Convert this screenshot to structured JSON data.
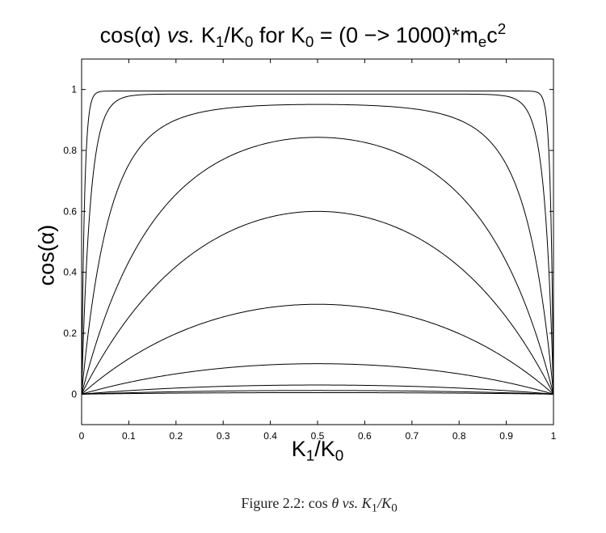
{
  "chart_data": {
    "type": "line",
    "title": {
      "part1": "cos(α) ",
      "vs": "vs.",
      "part2": " K",
      "sub1": "1",
      "part3": "/K",
      "sub2": "0",
      "part4": " for K",
      "sub3": "0",
      "part5": " = (0 −> 1000)*m",
      "sub4": "e",
      "part6": "c",
      "sup1": "2"
    },
    "xlabel": {
      "main": "K",
      "sub1": "1",
      "mid": "/K",
      "sub2": "0"
    },
    "ylabel": "cos(α)",
    "xlim": [
      0,
      1
    ],
    "ylim": [
      -0.1,
      1.1
    ],
    "x_ticks": [
      "0",
      "0.1",
      "0.2",
      "0.3",
      "0.4",
      "0.5",
      "0.6",
      "0.7",
      "0.8",
      "0.9",
      "1"
    ],
    "y_ticks": [
      "0",
      "0.2",
      "0.4",
      "0.6",
      "0.8",
      "1"
    ],
    "grid": false,
    "curve_peaks_at_0_5": [
      0.005,
      0.012,
      0.03,
      0.1,
      0.295,
      0.6,
      0.843,
      0.951,
      0.985,
      0.995
    ],
    "line_color": "#000000"
  },
  "caption": {
    "prefix": "Figure 2.2:  cos",
    "theta": " θ ",
    "vs": "vs.",
    "k": " K",
    "sub1": "1",
    "mid": "/K",
    "sub2": "0"
  }
}
